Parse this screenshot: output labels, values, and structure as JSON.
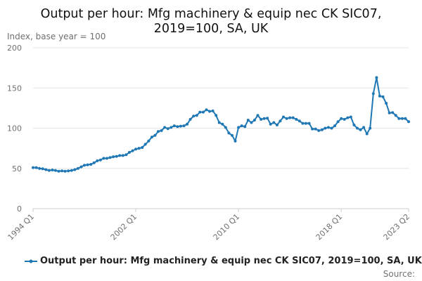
{
  "chart_data": {
    "type": "line",
    "title_lines": [
      "Output per hour: Mfg machinery & equip nec CK SIC07,",
      "2019=100, SA, UK"
    ],
    "ylabel": "Index, base year = 100",
    "xlabel": "",
    "ylim": [
      0,
      200
    ],
    "yticks": [
      "0",
      "50",
      "100",
      "150",
      "200"
    ],
    "xtick_labels": [
      "1994 Q1",
      "2002 Q1",
      "2010 Q1",
      "2018 Q1",
      "2023 Q2"
    ],
    "grid": true,
    "legend_position": "bottom",
    "source_label": "Source:",
    "color": "#1f77b4",
    "x": [
      "1994 Q1",
      "1994 Q2",
      "1994 Q3",
      "1994 Q4",
      "1995 Q1",
      "1995 Q2",
      "1995 Q3",
      "1995 Q4",
      "1996 Q1",
      "1996 Q2",
      "1996 Q3",
      "1996 Q4",
      "1997 Q1",
      "1997 Q2",
      "1997 Q3",
      "1997 Q4",
      "1998 Q1",
      "1998 Q2",
      "1998 Q3",
      "1998 Q4",
      "1999 Q1",
      "1999 Q2",
      "1999 Q3",
      "1999 Q4",
      "2000 Q1",
      "2000 Q2",
      "2000 Q3",
      "2000 Q4",
      "2001 Q1",
      "2001 Q2",
      "2001 Q3",
      "2001 Q4",
      "2002 Q1",
      "2002 Q2",
      "2002 Q3",
      "2002 Q4",
      "2003 Q1",
      "2003 Q2",
      "2003 Q3",
      "2003 Q4",
      "2004 Q1",
      "2004 Q2",
      "2004 Q3",
      "2004 Q4",
      "2005 Q1",
      "2005 Q2",
      "2005 Q3",
      "2005 Q4",
      "2006 Q1",
      "2006 Q2",
      "2006 Q3",
      "2006 Q4",
      "2007 Q1",
      "2007 Q2",
      "2007 Q3",
      "2007 Q4",
      "2008 Q1",
      "2008 Q2",
      "2008 Q3",
      "2008 Q4",
      "2009 Q1",
      "2009 Q2",
      "2009 Q3",
      "2009 Q4",
      "2010 Q1",
      "2010 Q2",
      "2010 Q3",
      "2010 Q4",
      "2011 Q1",
      "2011 Q2",
      "2011 Q3",
      "2011 Q4",
      "2012 Q1",
      "2012 Q2",
      "2012 Q3",
      "2012 Q4",
      "2013 Q1",
      "2013 Q2",
      "2013 Q3",
      "2013 Q4",
      "2014 Q1",
      "2014 Q2",
      "2014 Q3",
      "2014 Q4",
      "2015 Q1",
      "2015 Q2",
      "2015 Q3",
      "2015 Q4",
      "2016 Q1",
      "2016 Q2",
      "2016 Q3",
      "2016 Q4",
      "2017 Q1",
      "2017 Q2",
      "2017 Q3",
      "2017 Q4",
      "2018 Q1",
      "2018 Q2",
      "2018 Q3",
      "2018 Q4",
      "2019 Q1",
      "2019 Q2",
      "2019 Q3",
      "2019 Q4",
      "2020 Q1",
      "2020 Q2",
      "2020 Q3",
      "2020 Q4",
      "2021 Q1",
      "2021 Q2",
      "2021 Q3",
      "2021 Q4",
      "2022 Q1",
      "2022 Q2",
      "2022 Q3",
      "2022 Q4",
      "2023 Q1",
      "2023 Q2"
    ],
    "series": [
      {
        "name": "Output per hour: Mfg machinery & equip nec CK SIC07, 2019=100, SA, UK",
        "values": [
          51,
          51,
          50,
          49.5,
          48.5,
          47.5,
          48,
          47.5,
          46.5,
          47,
          46.5,
          47,
          47.5,
          48.5,
          50,
          52,
          54,
          54.5,
          55,
          57,
          59.5,
          60.5,
          62.5,
          62.5,
          63.5,
          64.5,
          65,
          66,
          66,
          67,
          70,
          72,
          74,
          75,
          76,
          80,
          84,
          89,
          91,
          96,
          97,
          101,
          99.5,
          101,
          103,
          102,
          102.5,
          103,
          105,
          111,
          115,
          116,
          120,
          120,
          123,
          121,
          121.5,
          116,
          107,
          105,
          101,
          94,
          91,
          84,
          101,
          103,
          102,
          110,
          107,
          110,
          116,
          111,
          112,
          112.5,
          105,
          107,
          104,
          109,
          114,
          112,
          113,
          113,
          111,
          109,
          106,
          106,
          106,
          99,
          99,
          97,
          98,
          100,
          101,
          100,
          103,
          108,
          112,
          111,
          113,
          114,
          104,
          100,
          98,
          101,
          93,
          100,
          143,
          163,
          140,
          139,
          131,
          119,
          119.5,
          116,
          112,
          112,
          112,
          108
        ]
      }
    ]
  }
}
